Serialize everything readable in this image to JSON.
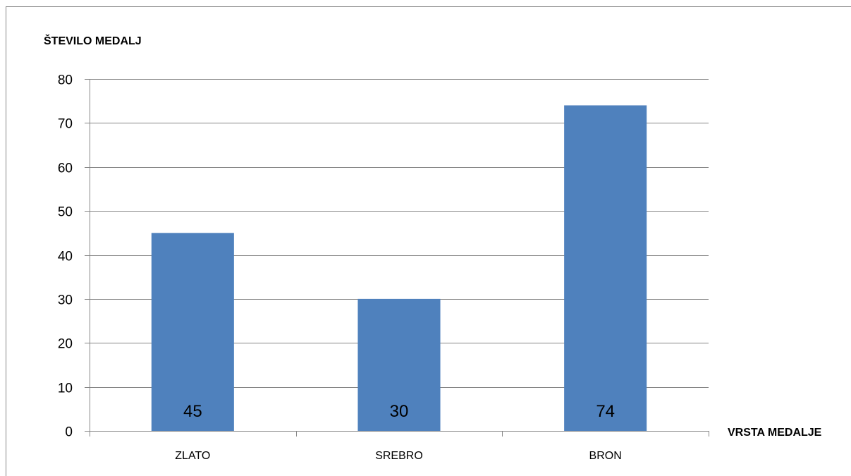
{
  "chart_data": {
    "type": "bar",
    "categories": [
      "ZLATO",
      "SREBRO",
      "BRON"
    ],
    "values": [
      45,
      30,
      74
    ],
    "data_labels": [
      "45",
      "30",
      "74"
    ],
    "ylabel": "ŠTEVILO MEDALJ",
    "xlabel": "VRSTA MEDALJE",
    "ylim": [
      0,
      80
    ],
    "yticks": [
      0,
      10,
      20,
      30,
      40,
      50,
      60,
      70,
      80
    ],
    "ytick_labels": [
      "0",
      "10",
      "20",
      "30",
      "40",
      "50",
      "60",
      "70",
      "80"
    ],
    "grid": true,
    "legend": "none",
    "bar_color": "#4F81BD"
  }
}
